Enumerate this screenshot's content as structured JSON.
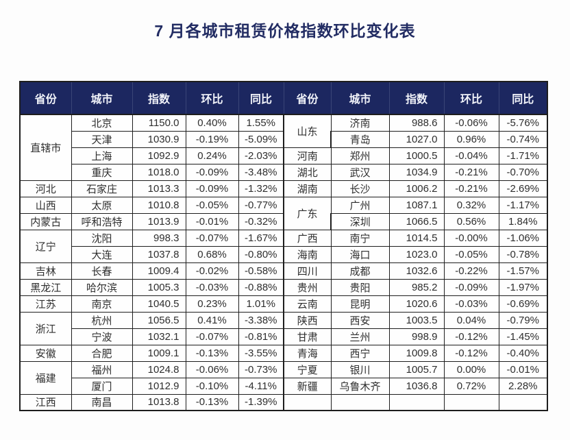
{
  "title": "7 月各城市租赁价格指数环比变化表",
  "colors": {
    "header_bg": "#1c2760",
    "title_color": "#222c63",
    "border_color": "#1d1d1d",
    "text_color": "#2e2e2e",
    "header_text": "#f2f4fa"
  },
  "table": {
    "headers": [
      "省份",
      "城市",
      "指数",
      "环比",
      "同比"
    ],
    "rows": [
      {
        "left": {
          "province": {
            "label": "直辖市",
            "span": 4
          },
          "city": "北京",
          "index": "1150.0",
          "mom": "0.40%",
          "yoy": "1.55%"
        },
        "right": {
          "province": {
            "label": "山东",
            "span": 2
          },
          "city": "济南",
          "index": "988.6",
          "mom": "-0.06%",
          "yoy": "-5.76%"
        }
      },
      {
        "left": {
          "city": "天津",
          "index": "1030.9",
          "mom": "-0.19%",
          "yoy": "-5.09%"
        },
        "right": {
          "city": "青岛",
          "index": "1027.0",
          "mom": "0.96%",
          "yoy": "-0.74%"
        }
      },
      {
        "left": {
          "city": "上海",
          "index": "1092.9",
          "mom": "0.24%",
          "yoy": "-2.03%"
        },
        "right": {
          "province": {
            "label": "河南",
            "span": 1
          },
          "city": "郑州",
          "index": "1000.5",
          "mom": "-0.04%",
          "yoy": "-1.71%"
        }
      },
      {
        "left": {
          "city": "重庆",
          "index": "1018.0",
          "mom": "-0.09%",
          "yoy": "-3.48%"
        },
        "right": {
          "province": {
            "label": "湖北",
            "span": 1
          },
          "city": "武汉",
          "index": "1034.9",
          "mom": "-0.21%",
          "yoy": "-0.70%"
        }
      },
      {
        "left": {
          "province": {
            "label": "河北",
            "span": 1
          },
          "city": "石家庄",
          "index": "1013.3",
          "mom": "-0.09%",
          "yoy": "-1.32%"
        },
        "right": {
          "province": {
            "label": "湖南",
            "span": 1
          },
          "city": "长沙",
          "index": "1006.2",
          "mom": "-0.21%",
          "yoy": "-2.69%"
        }
      },
      {
        "left": {
          "province": {
            "label": "山西",
            "span": 1
          },
          "city": "太原",
          "index": "1010.8",
          "mom": "-0.05%",
          "yoy": "-0.77%"
        },
        "right": {
          "province": {
            "label": "广东",
            "span": 2
          },
          "city": "广州",
          "index": "1087.1",
          "mom": "0.32%",
          "yoy": "-1.17%"
        }
      },
      {
        "left": {
          "province": {
            "label": "内蒙古",
            "span": 1
          },
          "city": "呼和浩特",
          "index": "1013.9",
          "mom": "-0.01%",
          "yoy": "-0.32%"
        },
        "right": {
          "city": "深圳",
          "index": "1066.5",
          "mom": "0.56%",
          "yoy": "1.84%"
        }
      },
      {
        "left": {
          "province": {
            "label": "辽宁",
            "span": 2
          },
          "city": "沈阳",
          "index": "998.3",
          "mom": "-0.07%",
          "yoy": "-1.67%"
        },
        "right": {
          "province": {
            "label": "广西",
            "span": 1
          },
          "city": "南宁",
          "index": "1014.5",
          "mom": "-0.00%",
          "yoy": "-1.06%"
        }
      },
      {
        "left": {
          "city": "大连",
          "index": "1037.8",
          "mom": "0.68%",
          "yoy": "-0.80%"
        },
        "right": {
          "province": {
            "label": "海南",
            "span": 1
          },
          "city": "海口",
          "index": "1023.0",
          "mom": "-0.05%",
          "yoy": "-0.78%"
        }
      },
      {
        "left": {
          "province": {
            "label": "吉林",
            "span": 1
          },
          "city": "长春",
          "index": "1009.4",
          "mom": "-0.02%",
          "yoy": "-0.58%"
        },
        "right": {
          "province": {
            "label": "四川",
            "span": 1
          },
          "city": "成都",
          "index": "1032.6",
          "mom": "-0.22%",
          "yoy": "-1.57%"
        }
      },
      {
        "left": {
          "province": {
            "label": "黑龙江",
            "span": 1
          },
          "city": "哈尔滨",
          "index": "1005.3",
          "mom": "-0.03%",
          "yoy": "-0.88%"
        },
        "right": {
          "province": {
            "label": "贵州",
            "span": 1
          },
          "city": "贵阳",
          "index": "985.2",
          "mom": "-0.09%",
          "yoy": "-1.97%"
        }
      },
      {
        "left": {
          "province": {
            "label": "江苏",
            "span": 1
          },
          "city": "南京",
          "index": "1040.5",
          "mom": "0.23%",
          "yoy": "1.01%"
        },
        "right": {
          "province": {
            "label": "云南",
            "span": 1
          },
          "city": "昆明",
          "index": "1020.6",
          "mom": "-0.03%",
          "yoy": "-0.69%"
        }
      },
      {
        "left": {
          "province": {
            "label": "浙江",
            "span": 2
          },
          "city": "杭州",
          "index": "1056.5",
          "mom": "0.41%",
          "yoy": "-3.38%"
        },
        "right": {
          "province": {
            "label": "陕西",
            "span": 1
          },
          "city": "西安",
          "index": "1003.5",
          "mom": "0.04%",
          "yoy": "-0.79%"
        }
      },
      {
        "left": {
          "city": "宁波",
          "index": "1032.1",
          "mom": "-0.07%",
          "yoy": "-0.81%"
        },
        "right": {
          "province": {
            "label": "甘肃",
            "span": 1
          },
          "city": "兰州",
          "index": "998.9",
          "mom": "-0.12%",
          "yoy": "-1.45%"
        }
      },
      {
        "left": {
          "province": {
            "label": "安徽",
            "span": 1
          },
          "city": "合肥",
          "index": "1009.1",
          "mom": "-0.13%",
          "yoy": "-3.55%"
        },
        "right": {
          "province": {
            "label": "青海",
            "span": 1
          },
          "city": "西宁",
          "index": "1009.8",
          "mom": "-0.12%",
          "yoy": "-0.40%"
        }
      },
      {
        "left": {
          "province": {
            "label": "福建",
            "span": 2
          },
          "city": "福州",
          "index": "1024.8",
          "mom": "-0.06%",
          "yoy": "-0.73%"
        },
        "right": {
          "province": {
            "label": "宁夏",
            "span": 1
          },
          "city": "银川",
          "index": "1005.7",
          "mom": "0.00%",
          "yoy": "-0.01%"
        }
      },
      {
        "left": {
          "city": "厦门",
          "index": "1012.9",
          "mom": "-0.10%",
          "yoy": "-4.11%"
        },
        "right": {
          "province": {
            "label": "新疆",
            "span": 1
          },
          "city": "乌鲁木齐",
          "index": "1036.8",
          "mom": "0.72%",
          "yoy": "2.28%"
        }
      },
      {
        "left": {
          "province": {
            "label": "江西",
            "span": 1
          },
          "city": "南昌",
          "index": "1013.8",
          "mom": "-0.13%",
          "yoy": "-1.39%"
        },
        "right": {
          "province": {
            "label": "",
            "span": 1
          },
          "city": "",
          "index": "",
          "mom": "",
          "yoy": ""
        }
      }
    ]
  },
  "chart_data": {
    "type": "table",
    "title": "7 月各城市租赁价格指数环比变化表",
    "columns": [
      "省份",
      "城市",
      "指数",
      "环比",
      "同比"
    ],
    "rows": [
      [
        "直辖市",
        "北京",
        "1150.0",
        "0.40%",
        "1.55%"
      ],
      [
        "直辖市",
        "天津",
        "1030.9",
        "-0.19%",
        "-5.09%"
      ],
      [
        "直辖市",
        "上海",
        "1092.9",
        "0.24%",
        "-2.03%"
      ],
      [
        "直辖市",
        "重庆",
        "1018.0",
        "-0.09%",
        "-3.48%"
      ],
      [
        "河北",
        "石家庄",
        "1013.3",
        "-0.09%",
        "-1.32%"
      ],
      [
        "山西",
        "太原",
        "1010.8",
        "-0.05%",
        "-0.77%"
      ],
      [
        "内蒙古",
        "呼和浩特",
        "1013.9",
        "-0.01%",
        "-0.32%"
      ],
      [
        "辽宁",
        "沈阳",
        "998.3",
        "-0.07%",
        "-1.67%"
      ],
      [
        "辽宁",
        "大连",
        "1037.8",
        "0.68%",
        "-0.80%"
      ],
      [
        "吉林",
        "长春",
        "1009.4",
        "-0.02%",
        "-0.58%"
      ],
      [
        "黑龙江",
        "哈尔滨",
        "1005.3",
        "-0.03%",
        "-0.88%"
      ],
      [
        "江苏",
        "南京",
        "1040.5",
        "0.23%",
        "1.01%"
      ],
      [
        "浙江",
        "杭州",
        "1056.5",
        "0.41%",
        "-3.38%"
      ],
      [
        "浙江",
        "宁波",
        "1032.1",
        "-0.07%",
        "-0.81%"
      ],
      [
        "安徽",
        "合肥",
        "1009.1",
        "-0.13%",
        "-3.55%"
      ],
      [
        "福建",
        "福州",
        "1024.8",
        "-0.06%",
        "-0.73%"
      ],
      [
        "福建",
        "厦门",
        "1012.9",
        "-0.10%",
        "-4.11%"
      ],
      [
        "江西",
        "南昌",
        "1013.8",
        "-0.13%",
        "-1.39%"
      ],
      [
        "山东",
        "济南",
        "988.6",
        "-0.06%",
        "-5.76%"
      ],
      [
        "山东",
        "青岛",
        "1027.0",
        "0.96%",
        "-0.74%"
      ],
      [
        "河南",
        "郑州",
        "1000.5",
        "-0.04%",
        "-1.71%"
      ],
      [
        "湖北",
        "武汉",
        "1034.9",
        "-0.21%",
        "-0.70%"
      ],
      [
        "湖南",
        "长沙",
        "1006.2",
        "-0.21%",
        "-2.69%"
      ],
      [
        "广东",
        "广州",
        "1087.1",
        "0.32%",
        "-1.17%"
      ],
      [
        "广东",
        "深圳",
        "1066.5",
        "0.56%",
        "1.84%"
      ],
      [
        "广西",
        "南宁",
        "1014.5",
        "-0.00%",
        "-1.06%"
      ],
      [
        "海南",
        "海口",
        "1023.0",
        "-0.05%",
        "-0.78%"
      ],
      [
        "四川",
        "成都",
        "1032.6",
        "-0.22%",
        "-1.57%"
      ],
      [
        "贵州",
        "贵阳",
        "985.2",
        "-0.09%",
        "-1.97%"
      ],
      [
        "云南",
        "昆明",
        "1020.6",
        "-0.03%",
        "-0.69%"
      ],
      [
        "陕西",
        "西安",
        "1003.5",
        "0.04%",
        "-0.79%"
      ],
      [
        "甘肃",
        "兰州",
        "998.9",
        "-0.12%",
        "-1.45%"
      ],
      [
        "青海",
        "西宁",
        "1009.8",
        "-0.12%",
        "-0.40%"
      ],
      [
        "宁夏",
        "银川",
        "1005.7",
        "0.00%",
        "-0.01%"
      ],
      [
        "新疆",
        "乌鲁木齐",
        "1036.8",
        "0.72%",
        "2.28%"
      ]
    ]
  }
}
